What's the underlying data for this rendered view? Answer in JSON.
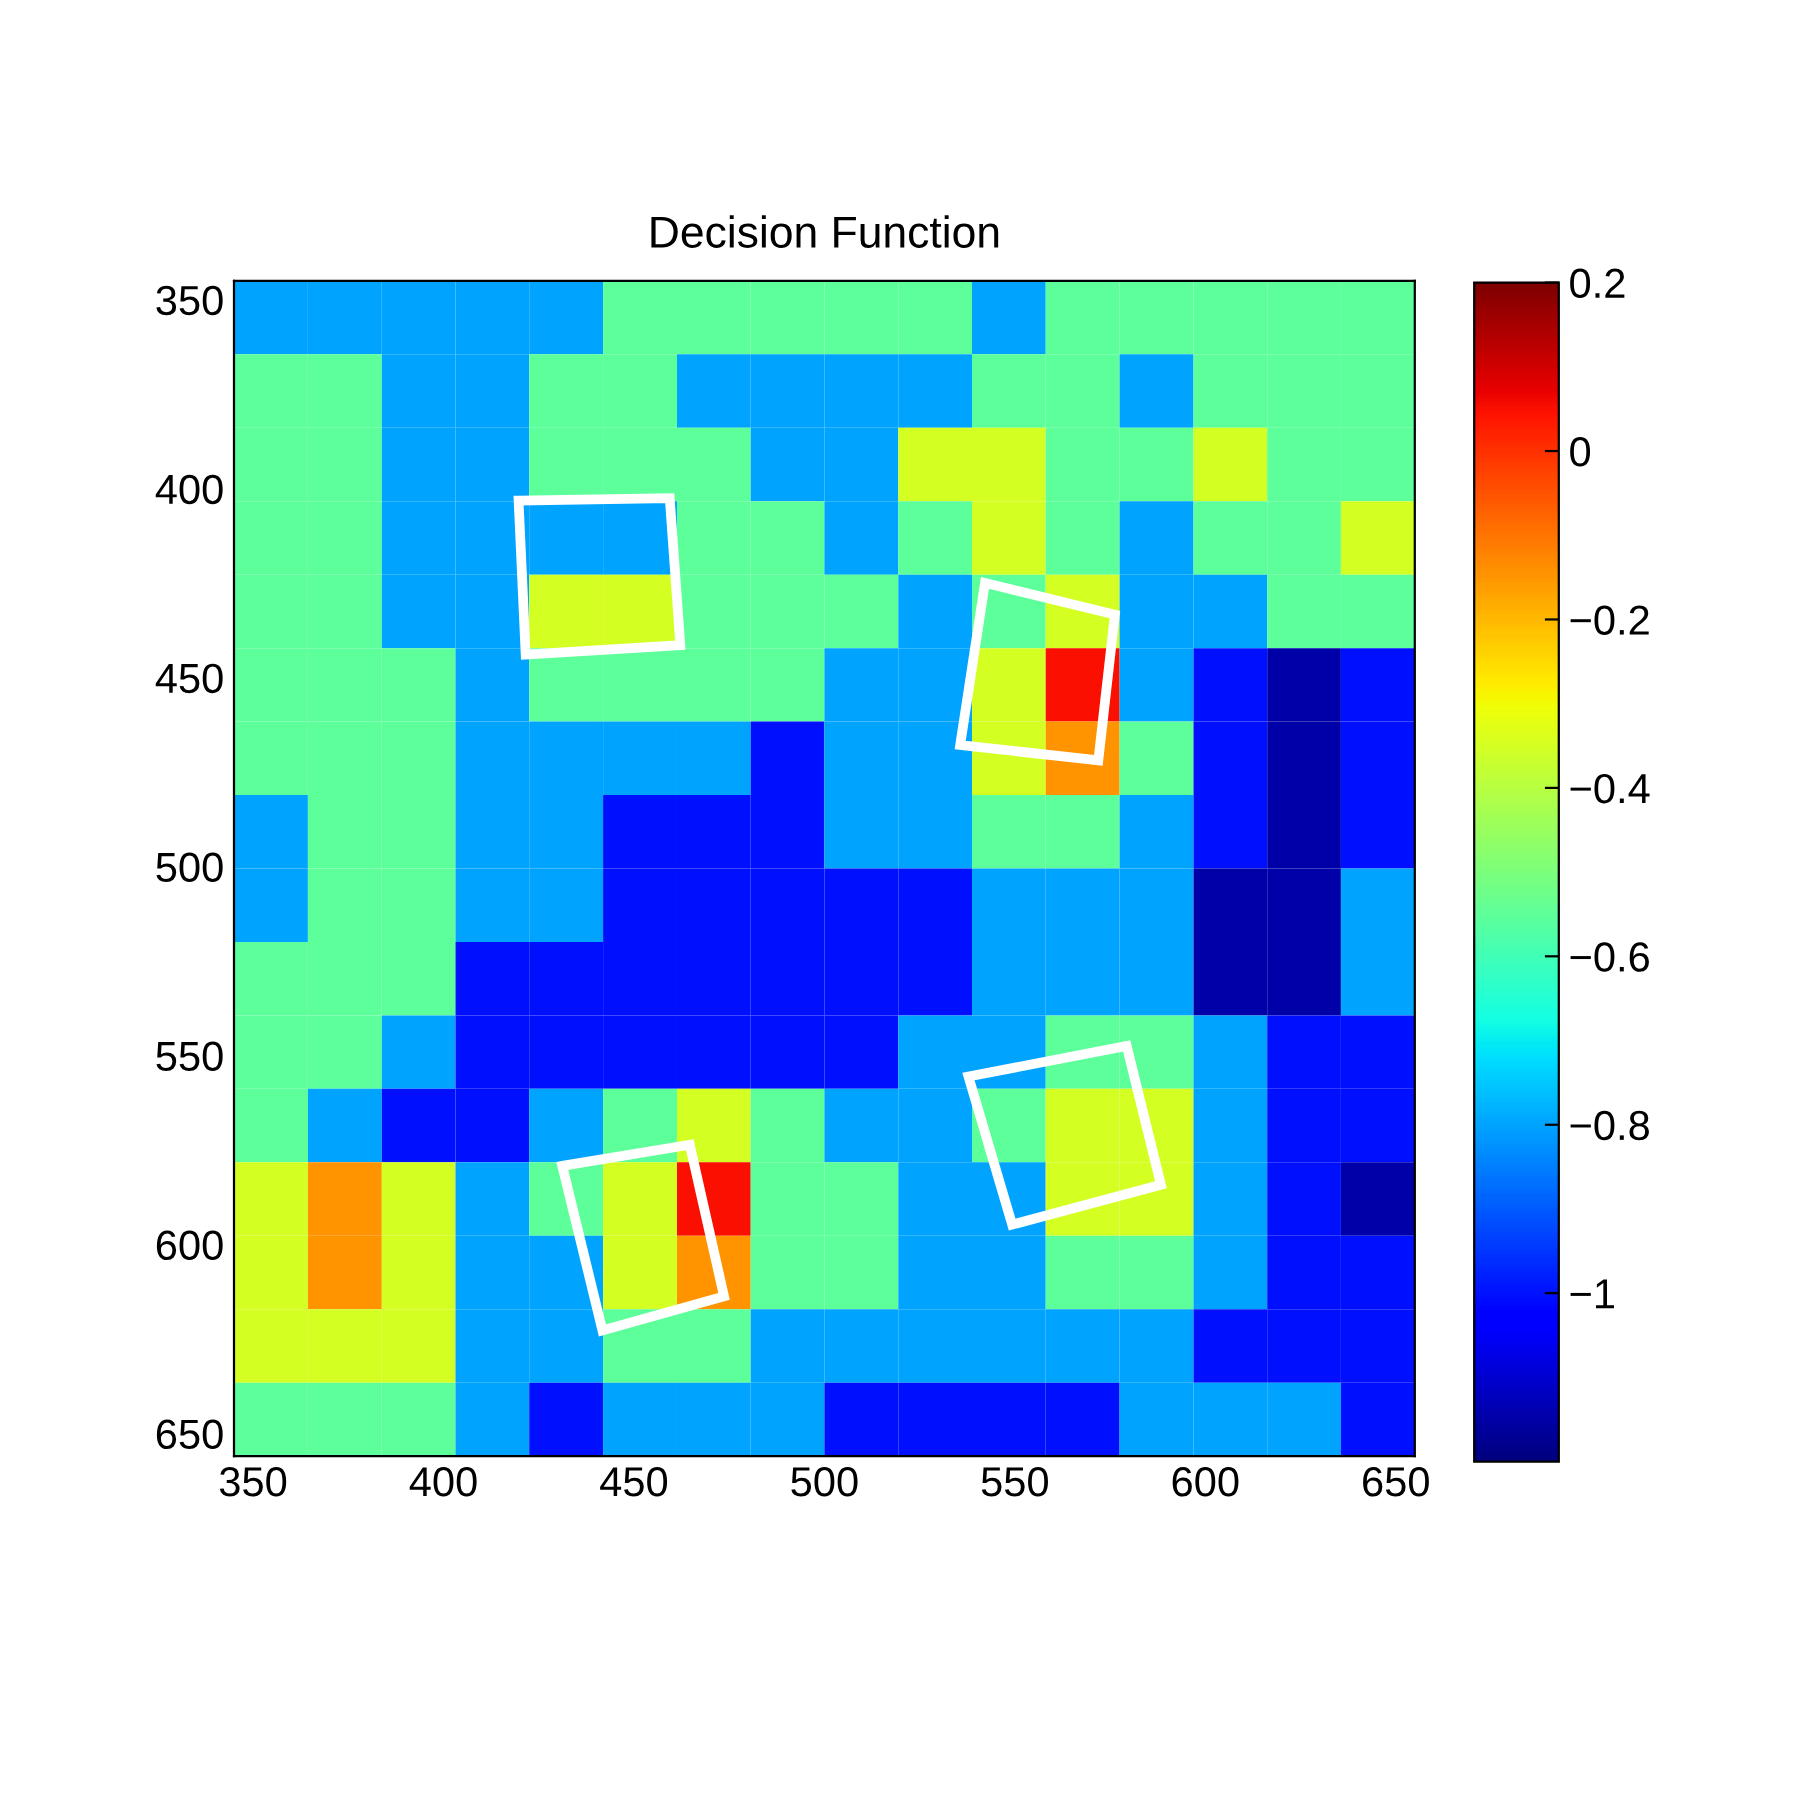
{
  "chart_data": {
    "type": "heatmap",
    "title": "Decision Function",
    "x": [
      354.7,
      374.1,
      393.5,
      412.8,
      432.2,
      451.6,
      471.0,
      490.3,
      509.7,
      529.1,
      548.4,
      567.8,
      587.2,
      606.6,
      625.9,
      645.3
    ],
    "y": [
      354.7,
      374.2,
      393.6,
      413.0,
      432.5,
      451.9,
      471.3,
      490.8,
      510.2,
      529.7,
      549.1,
      568.5,
      588.0,
      607.4,
      626.8,
      646.3
    ],
    "xlim": [
      345,
      655
    ],
    "ylim": [
      656,
      345
    ],
    "xticks": [
      350,
      400,
      450,
      500,
      550,
      600,
      650
    ],
    "yticks": [
      350,
      400,
      450,
      500,
      550,
      600,
      650
    ],
    "clim": [
      -1.2,
      0.2
    ],
    "cticks": [
      {
        "value": -1,
        "label": "−1"
      },
      {
        "value": -0.8,
        "label": "−0.8"
      },
      {
        "value": -0.6,
        "label": "−0.6"
      },
      {
        "value": -0.4,
        "label": "−0.4"
      },
      {
        "value": -0.2,
        "label": "−0.2"
      },
      0,
      0.2
    ],
    "cells": [
      [
        -0.8,
        -0.8,
        -0.8,
        -0.8,
        -0.8,
        -0.55,
        -0.55,
        -0.55,
        -0.55,
        -0.55,
        -0.8,
        -0.55,
        -0.55,
        -0.55,
        -0.55,
        -0.55
      ],
      [
        -0.55,
        -0.55,
        -0.8,
        -0.8,
        -0.55,
        -0.55,
        -0.8,
        -0.8,
        -0.8,
        -0.8,
        -0.55,
        -0.55,
        -0.8,
        -0.55,
        -0.55,
        -0.55
      ],
      [
        -0.55,
        -0.55,
        -0.8,
        -0.8,
        -0.55,
        -0.55,
        -0.55,
        -0.8,
        -0.8,
        -0.35,
        -0.35,
        -0.55,
        -0.55,
        -0.35,
        -0.55,
        -0.55
      ],
      [
        -0.55,
        -0.55,
        -0.8,
        -0.8,
        -0.8,
        -0.8,
        -0.55,
        -0.55,
        -0.8,
        -0.55,
        -0.35,
        -0.55,
        -0.8,
        -0.55,
        -0.55,
        -0.35
      ],
      [
        -0.55,
        -0.55,
        -0.8,
        -0.8,
        -0.35,
        -0.35,
        -0.55,
        -0.55,
        -0.55,
        -0.8,
        -0.55,
        -0.35,
        -0.8,
        -0.8,
        -0.55,
        -0.55
      ],
      [
        -0.55,
        -0.55,
        -0.55,
        -0.8,
        -0.55,
        -0.55,
        -0.55,
        -0.55,
        -0.8,
        -0.8,
        -0.35,
        0.05,
        -0.8,
        -1.0,
        -1.15,
        -1.0
      ],
      [
        -0.55,
        -0.55,
        -0.55,
        -0.8,
        -0.8,
        -0.8,
        -0.8,
        -1.0,
        -0.8,
        -0.8,
        -0.35,
        -0.15,
        -0.55,
        -1.0,
        -1.15,
        -1.0
      ],
      [
        -0.8,
        -0.55,
        -0.55,
        -0.8,
        -0.8,
        -1.0,
        -1.0,
        -1.0,
        -0.8,
        -0.8,
        -0.55,
        -0.55,
        -0.8,
        -1.0,
        -1.15,
        -1.0
      ],
      [
        -0.8,
        -0.55,
        -0.55,
        -0.8,
        -0.8,
        -1.0,
        -1.0,
        -1.0,
        -1.0,
        -1.0,
        -0.8,
        -0.8,
        -0.8,
        -1.15,
        -1.15,
        -0.8
      ],
      [
        -0.55,
        -0.55,
        -0.55,
        -1.0,
        -1.0,
        -1.0,
        -1.0,
        -1.0,
        -1.0,
        -1.0,
        -0.8,
        -0.8,
        -0.8,
        -1.15,
        -1.15,
        -0.8
      ],
      [
        -0.55,
        -0.55,
        -0.8,
        -1.0,
        -1.0,
        -1.0,
        -1.0,
        -1.0,
        -1.0,
        -0.8,
        -0.8,
        -0.55,
        -0.55,
        -0.8,
        -1.0,
        -1.0
      ],
      [
        -0.55,
        -0.8,
        -1.0,
        -1.0,
        -0.8,
        -0.55,
        -0.35,
        -0.55,
        -0.8,
        -0.8,
        -0.55,
        -0.35,
        -0.35,
        -0.8,
        -1.0,
        -1.0
      ],
      [
        -0.35,
        -0.15,
        -0.35,
        -0.8,
        -0.55,
        -0.35,
        0.05,
        -0.55,
        -0.55,
        -0.8,
        -0.8,
        -0.35,
        -0.35,
        -0.8,
        -1.0,
        -1.15
      ],
      [
        -0.35,
        -0.15,
        -0.35,
        -0.8,
        -0.8,
        -0.35,
        -0.15,
        -0.55,
        -0.55,
        -0.8,
        -0.8,
        -0.55,
        -0.55,
        -0.8,
        -1.0,
        -1.0
      ],
      [
        -0.35,
        -0.35,
        -0.35,
        -0.8,
        -0.8,
        -0.55,
        -0.55,
        -0.8,
        -0.8,
        -0.8,
        -0.8,
        -0.8,
        -0.8,
        -1.0,
        -1.0,
        -1.0
      ],
      [
        -0.55,
        -0.55,
        -0.55,
        -0.8,
        -1.0,
        -0.8,
        -0.8,
        -0.8,
        -1.0,
        -1.0,
        -1.0,
        -1.0,
        -0.8,
        -0.8,
        -0.8,
        -1.0
      ]
    ]
  }
}
